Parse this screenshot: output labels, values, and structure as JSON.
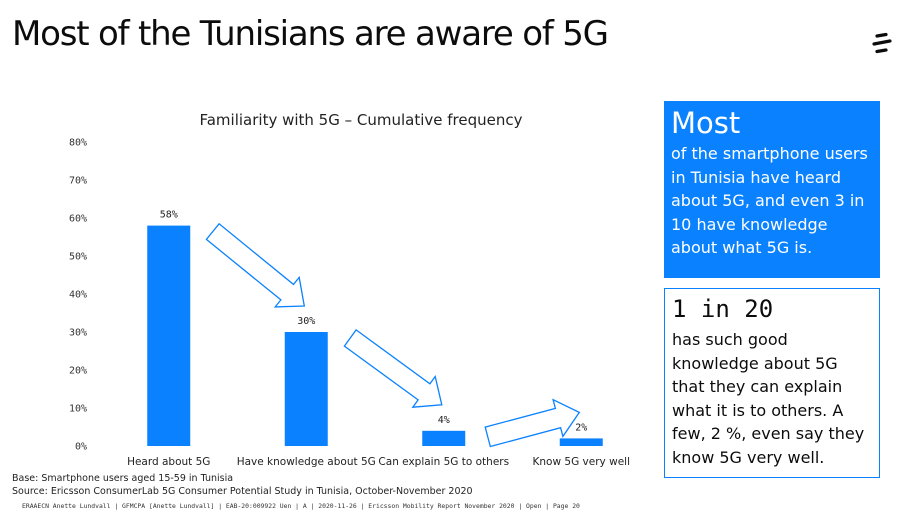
{
  "page": {
    "title": "Most of the Tunisians are aware of 5G"
  },
  "logo": {
    "icon": "ericsson-logo-icon"
  },
  "chart_data": {
    "type": "bar",
    "title": "Familiarity with 5G – Cumulative frequency",
    "categories": [
      "Heard about 5G",
      "Have knowledge about 5G",
      "Can explain 5G to others",
      "Know 5G very well"
    ],
    "values": [
      58,
      30,
      4,
      2
    ],
    "data_labels": [
      "58%",
      "30%",
      "4%",
      "2%"
    ],
    "yticks": [
      0,
      10,
      20,
      30,
      40,
      50,
      60,
      70,
      80
    ],
    "ytick_labels": [
      "0%",
      "10%",
      "20%",
      "30%",
      "40%",
      "50%",
      "60%",
      "70%",
      "80%"
    ],
    "ylim": [
      0,
      80
    ],
    "grid": false,
    "bar_color": "#0a82ff",
    "annotations": [
      "arrow from bar 1 to bar 2",
      "arrow from bar 2 to bar 3",
      "arrow from bar 3 to bar 4"
    ]
  },
  "footnotes": {
    "base": "Base: Smartphone users aged 15-59 in Tunisia",
    "source": "Source: Ericsson ConsumerLab 5G Consumer Potential Study in Tunisia, October-November 2020"
  },
  "footer": "ERAAECN Anette Lundvall  |  GFMCPA [Anette Lundvall]  |  EAB-20:009922 Uen  |  A  |  2020-11-26  |  Ericsson Mobility Report November 2020  |  Open  |  Page 20",
  "callout1": {
    "headline": "Most",
    "lines": [
      "of the smartphone users",
      "in Tunisia have heard",
      "about 5G, and even 3 in",
      "10 have knowledge",
      "about what 5G is."
    ]
  },
  "callout2": {
    "headline": "1 in 20",
    "lines": [
      "has such good",
      "knowledge about 5G",
      "that they can explain",
      "what it is to others. A",
      "few, 2 %, even say they",
      "know 5G very well."
    ]
  },
  "colors": {
    "accent": "#0a82ff",
    "text": "#0c0c0c",
    "background": "#ffffff"
  }
}
